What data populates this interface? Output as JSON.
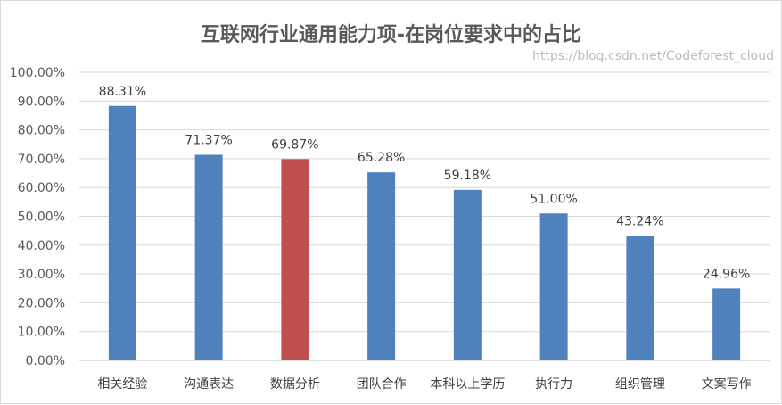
{
  "chart_data": {
    "type": "bar",
    "title": "互联网行业通用能力项-在岗位要求中的占比",
    "categories": [
      "相关经验",
      "沟通表达",
      "数据分析",
      "团队合作",
      "本科以上学历",
      "执行力",
      "组织管理",
      "文案写作"
    ],
    "values": [
      88.31,
      71.37,
      69.87,
      65.28,
      59.18,
      51.0,
      43.24,
      24.96
    ],
    "data_labels": [
      "88.31%",
      "71.37%",
      "69.87%",
      "65.28%",
      "59.18%",
      "51.00%",
      "43.24%",
      "24.96%"
    ],
    "yticks": [
      "0.00%",
      "10.00%",
      "20.00%",
      "30.00%",
      "40.00%",
      "50.00%",
      "60.00%",
      "70.00%",
      "80.00%",
      "90.00%",
      "100.00%"
    ],
    "ylim": [
      0,
      100
    ],
    "grid": true,
    "colors": {
      "default": "#4f81bd",
      "highlight": "#c0504d"
    },
    "highlight_index": 2
  },
  "watermark": "https://blog.csdn.net/Codeforest_cloud"
}
